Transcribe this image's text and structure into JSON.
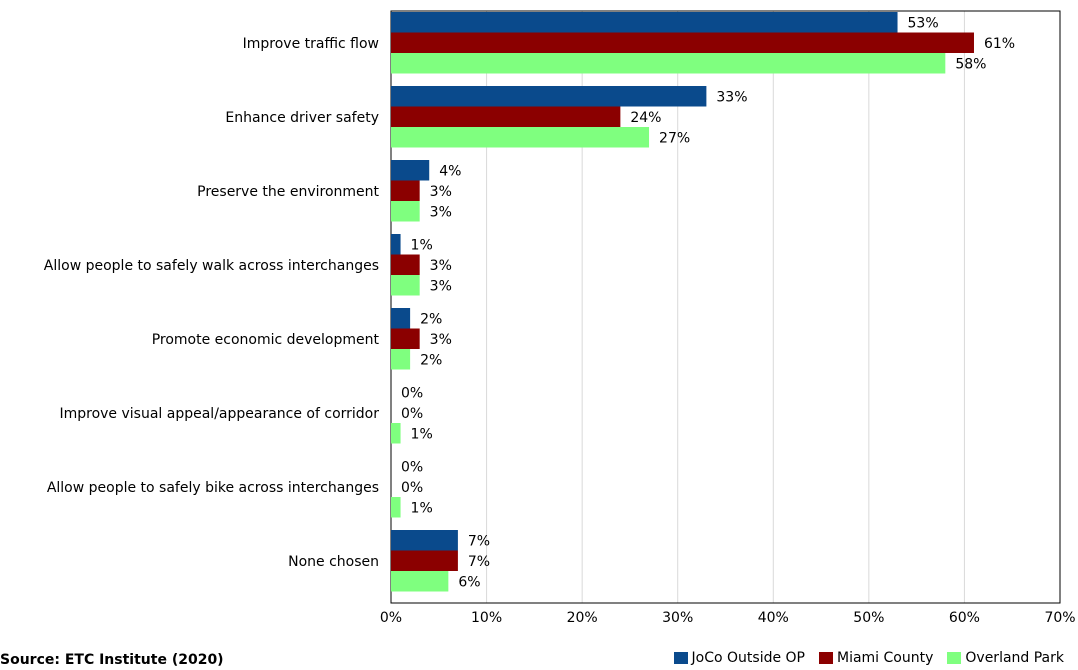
{
  "chart_data": {
    "type": "bar",
    "orientation": "horizontal",
    "categories": [
      "Improve traffic flow",
      "Enhance driver safety",
      "Preserve the environment",
      "Allow people to safely walk across interchanges",
      "Promote economic development",
      "Improve visual appeal/appearance of corridor",
      "Allow people to safely bike across interchanges",
      "None chosen"
    ],
    "series": [
      {
        "name": "JoCo Outside OP",
        "color": "#0a4a8c",
        "values": [
          53,
          33,
          4,
          1,
          2,
          0,
          0,
          7
        ]
      },
      {
        "name": "Miami County",
        "color": "#8b0000",
        "values": [
          61,
          24,
          3,
          3,
          3,
          0,
          0,
          7
        ]
      },
      {
        "name": "Overland Park",
        "color": "#7fff7f",
        "values": [
          58,
          27,
          3,
          3,
          2,
          1,
          1,
          6
        ]
      }
    ],
    "value_suffix": "%",
    "xlim": [
      0,
      70
    ],
    "xticks": [
      "0%",
      "10%",
      "20%",
      "30%",
      "40%",
      "50%",
      "60%",
      "70%"
    ],
    "grid": true,
    "legend_position": "bottom-right"
  },
  "source": "Source:  ETC Institute (2020)"
}
